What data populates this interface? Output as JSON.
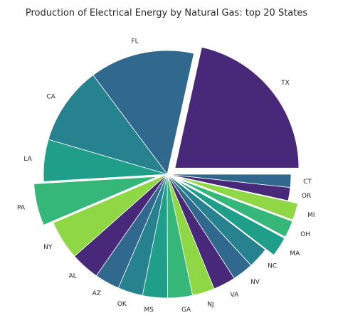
{
  "chart_data": {
    "type": "pie",
    "title": "Production of Electrical Energy by Natural Gas: top 20 States",
    "start_angle_deg": 0,
    "direction": "counterclockwise",
    "categories": [
      "TX",
      "FL",
      "CA",
      "LA",
      "PA",
      "NY",
      "AL",
      "AZ",
      "OK",
      "MS",
      "GA",
      "NJ",
      "VA",
      "NV",
      "NC",
      "MA",
      "OH",
      "MI",
      "OR",
      "CT"
    ],
    "values": [
      63.0,
      40.0,
      30.0,
      16.0,
      16.0,
      15.0,
      11.0,
      9.5,
      9.5,
      9.5,
      9.5,
      8.5,
      8.5,
      8.0,
      8.0,
      7.5,
      6.5,
      6.5,
      5.0,
      5.0
    ],
    "exploded": [
      "TX",
      "PA",
      "MA",
      "OH",
      "MI"
    ],
    "colors": [
      "#482878",
      "#31688e",
      "#26828e",
      "#1f9e89",
      "#35b779",
      "#8fd744",
      "#482878",
      "#31688e",
      "#26828e",
      "#1f9e89",
      "#35b779",
      "#8fd744",
      "#482878",
      "#31688e",
      "#26828e",
      "#1f9e89",
      "#35b779",
      "#8fd744",
      "#482878",
      "#31688e"
    ]
  }
}
